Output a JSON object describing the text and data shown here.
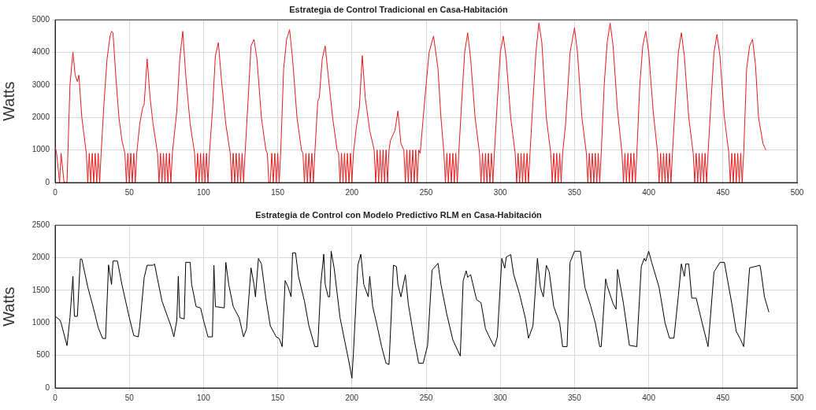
{
  "chart_data": [
    {
      "type": "line",
      "title": "Estrategia de Control Tradicional en Casa-Habitación",
      "ylabel": "Watts",
      "xlim": [
        0,
        500
      ],
      "xticks": [
        0,
        50,
        100,
        150,
        200,
        250,
        300,
        350,
        400,
        450,
        500
      ],
      "ylim": [
        0,
        5000
      ],
      "yticks": [
        0,
        1000,
        2000,
        3000,
        4000,
        5000
      ],
      "grid": true,
      "marker": "none",
      "line_style": "solid",
      "series": [
        {
          "color": "#e31a1c",
          "x": [
            0,
            1,
            3,
            4,
            6,
            8,
            10,
            12,
            13.5,
            15,
            16,
            18,
            21,
            22,
            23,
            24,
            25,
            26,
            27,
            28,
            29,
            30,
            31,
            33,
            35,
            37,
            38,
            39,
            41,
            43,
            45,
            47,
            48,
            49,
            50,
            51,
            52,
            53,
            54,
            55,
            57,
            59,
            60,
            62,
            64,
            66,
            69,
            70,
            71,
            72,
            73,
            74,
            75,
            76,
            77,
            78,
            79,
            82,
            84,
            86,
            88,
            91,
            94,
            95,
            96,
            97,
            98,
            99,
            100,
            101,
            102,
            103,
            104,
            106,
            108,
            110,
            112,
            115,
            118,
            119,
            120,
            121,
            122,
            123,
            124,
            125,
            126,
            127,
            128,
            130,
            132,
            134,
            136,
            139,
            142,
            143,
            144,
            145,
            146,
            147,
            148,
            149,
            150,
            151,
            152,
            154,
            156,
            158,
            160,
            163,
            166,
            167,
            168,
            169,
            170,
            171,
            172,
            173,
            174,
            175,
            177,
            178,
            180,
            182,
            184,
            187,
            190,
            191,
            192,
            193,
            194,
            195,
            196,
            197,
            198,
            199,
            200,
            201,
            203,
            205,
            207,
            209,
            212,
            215,
            216,
            217,
            218,
            219,
            220,
            221,
            222,
            223,
            224,
            225,
            226,
            229,
            231,
            233,
            235,
            236,
            237,
            238,
            239,
            240,
            241,
            242,
            243,
            244,
            245,
            246,
            249,
            252,
            255,
            258,
            260,
            262,
            263,
            264,
            265,
            266,
            267,
            268,
            269,
            270,
            271,
            272,
            274,
            276,
            278,
            280,
            283,
            286,
            287,
            288,
            289,
            290,
            291,
            292,
            293,
            294,
            295,
            296,
            298,
            300,
            302,
            304,
            307,
            310,
            311,
            312,
            313,
            314,
            315,
            316,
            317,
            318,
            319,
            320,
            322,
            324,
            326,
            328,
            331,
            334,
            335,
            336,
            337,
            338,
            339,
            340,
            341,
            342,
            344,
            347,
            350,
            352,
            355,
            358,
            359,
            360,
            361,
            362,
            363,
            364,
            365,
            366,
            367,
            368,
            370,
            372,
            374,
            376,
            379,
            382,
            383,
            384,
            385,
            386,
            387,
            388,
            389,
            390,
            391,
            392,
            394,
            396,
            398,
            400,
            403,
            406,
            407,
            408,
            409,
            410,
            411,
            412,
            413,
            414,
            415,
            416,
            418,
            420,
            422,
            424,
            427,
            430,
            431,
            432,
            433,
            434,
            435,
            436,
            437,
            438,
            439,
            440,
            442,
            444,
            446,
            448,
            451,
            454,
            455,
            456,
            457,
            458,
            459,
            460,
            461,
            462,
            463,
            464,
            466,
            468,
            470,
            472,
            474,
            477,
            479
          ],
          "values": [
            1100,
            900,
            0,
            900,
            0,
            0,
            3000,
            4000,
            3300,
            3100,
            3300,
            2000,
            900,
            0,
            900,
            0,
            900,
            0,
            900,
            0,
            900,
            0,
            900,
            2500,
            3800,
            4500,
            4650,
            4600,
            3200,
            2000,
            1300,
            900,
            0,
            900,
            0,
            900,
            0,
            900,
            0,
            900,
            1800,
            2300,
            2400,
            3800,
            2600,
            1800,
            900,
            0,
            900,
            0,
            900,
            0,
            900,
            0,
            900,
            0,
            900,
            2200,
            3800,
            4650,
            3300,
            1800,
            900,
            0,
            900,
            0,
            900,
            0,
            900,
            0,
            900,
            0,
            900,
            2200,
            3900,
            4300,
            3200,
            1800,
            900,
            0,
            900,
            0,
            900,
            0,
            900,
            0,
            900,
            0,
            900,
            2500,
            4200,
            4400,
            3800,
            2000,
            1000,
            900,
            0,
            0,
            900,
            0,
            900,
            0,
            900,
            0,
            900,
            3500,
            4400,
            4700,
            3800,
            2000,
            1000,
            900,
            0,
            900,
            0,
            900,
            0,
            900,
            0,
            900,
            2500,
            2600,
            3800,
            4200,
            3300,
            2000,
            1000,
            900,
            0,
            900,
            0,
            900,
            0,
            900,
            0,
            900,
            0,
            900,
            1700,
            2300,
            3900,
            2600,
            1600,
            1000,
            0,
            1000,
            0,
            1000,
            0,
            1000,
            0,
            1000,
            0,
            1000,
            1300,
            1600,
            2200,
            1200,
            1000,
            0,
            1000,
            0,
            1000,
            0,
            1000,
            0,
            1000,
            0,
            1000,
            900,
            2500,
            4000,
            4500,
            3500,
            2000,
            900,
            0,
            900,
            0,
            900,
            0,
            900,
            0,
            900,
            0,
            900,
            2500,
            4000,
            4600,
            3800,
            2000,
            900,
            0,
            900,
            0,
            900,
            0,
            900,
            0,
            900,
            0,
            900,
            2500,
            4000,
            4500,
            3800,
            2000,
            900,
            0,
            900,
            0,
            900,
            0,
            900,
            0,
            900,
            0,
            900,
            2500,
            4000,
            4900,
            4300,
            2000,
            900,
            0,
            900,
            0,
            900,
            0,
            900,
            0,
            900,
            1800,
            4000,
            4750,
            4000,
            2000,
            900,
            0,
            900,
            0,
            900,
            0,
            900,
            0,
            900,
            0,
            900,
            3000,
            4300,
            4900,
            4200,
            2200,
            900,
            0,
            900,
            0,
            900,
            0,
            900,
            0,
            900,
            0,
            900,
            3000,
            4200,
            4650,
            4000,
            2200,
            900,
            0,
            900,
            0,
            900,
            0,
            900,
            0,
            900,
            0,
            900,
            2500,
            4000,
            4600,
            3900,
            2000,
            900,
            0,
            900,
            0,
            900,
            0,
            900,
            0,
            900,
            0,
            900,
            2500,
            4000,
            4550,
            3900,
            2000,
            900,
            0,
            900,
            0,
            900,
            0,
            900,
            0,
            900,
            0,
            900,
            3500,
            4200,
            4400,
            3600,
            2000,
            1200,
            1000
          ]
        }
      ]
    },
    {
      "type": "line",
      "title": "Estrategia de Control con Modelo Predictivo RLM en Casa-Habitación",
      "ylabel": "Watts",
      "xlim": [
        0,
        500
      ],
      "xticks": [
        0,
        50,
        100,
        150,
        200,
        250,
        300,
        350,
        400,
        450,
        500
      ],
      "ylim": [
        0,
        2500
      ],
      "yticks": [
        0,
        500,
        1000,
        1500,
        2000,
        2500
      ],
      "grid": true,
      "marker": "none",
      "line_style": "solid",
      "series": [
        {
          "color": "#000000",
          "x": [
            0,
            3,
            4,
            8,
            10,
            12,
            13,
            15,
            17,
            18,
            22,
            26,
            29,
            32,
            34,
            36,
            38,
            39,
            42,
            45,
            50,
            53,
            56,
            57,
            60,
            62,
            66,
            67,
            69,
            72,
            76,
            78,
            80,
            82,
            83,
            84,
            87,
            88,
            91,
            92,
            95,
            98,
            100,
            103,
            106,
            107,
            108,
            114,
            115,
            117,
            120,
            124,
            127,
            129,
            132,
            134,
            135,
            137,
            139,
            142,
            145,
            149,
            151,
            153,
            155,
            157,
            159,
            160,
            162,
            164,
            168,
            171,
            175,
            177,
            179,
            181,
            182,
            184,
            185,
            186,
            188,
            192,
            198,
            200,
            201,
            204,
            206,
            208,
            211,
            212,
            214,
            217,
            220,
            223,
            225,
            228,
            230,
            231,
            233,
            236,
            238,
            242,
            245,
            248,
            251,
            254,
            258,
            260,
            264,
            268,
            273,
            275,
            277,
            278,
            280,
            284,
            287,
            290,
            293,
            296,
            298,
            301,
            303,
            304,
            307,
            309,
            313,
            317,
            319,
            322,
            325,
            327,
            329,
            331,
            333,
            336,
            340,
            342,
            345,
            347,
            350,
            354,
            357,
            361,
            364,
            367,
            368,
            371,
            372,
            376,
            378,
            379,
            383,
            387,
            392,
            395,
            397,
            398,
            400,
            402,
            407,
            411,
            414,
            417,
            420,
            422,
            424,
            425,
            427,
            429,
            432,
            436,
            440,
            444,
            448,
            451,
            456,
            459,
            462,
            464,
            468,
            475,
            476,
            478,
            481
          ],
          "values": [
            1100,
            1050,
            1000,
            650,
            1080,
            1715,
            1100,
            1100,
            1980,
            1980,
            1550,
            1210,
            930,
            760,
            760,
            1890,
            1590,
            1950,
            1950,
            1590,
            1080,
            805,
            785,
            950,
            1695,
            1885,
            1885,
            1905,
            1675,
            1335,
            1080,
            955,
            785,
            1040,
            1715,
            1080,
            1060,
            1930,
            1930,
            1590,
            1250,
            1230,
            1040,
            785,
            785,
            1885,
            1250,
            1230,
            1930,
            1590,
            1250,
            1080,
            785,
            910,
            1845,
            1590,
            1400,
            1990,
            1905,
            1380,
            955,
            785,
            760,
            635,
            1650,
            1550,
            1400,
            2075,
            2075,
            1715,
            1335,
            955,
            635,
            635,
            1590,
            2055,
            1590,
            1400,
            1400,
            2100,
            1845,
            1080,
            400,
            150,
            530,
            1885,
            2055,
            1590,
            1400,
            1715,
            1250,
            955,
            635,
            380,
            360,
            1885,
            1865,
            1590,
            1400,
            1740,
            1290,
            740,
            380,
            380,
            655,
            1810,
            1915,
            1590,
            1125,
            740,
            490,
            1650,
            1800,
            1700,
            1740,
            1355,
            1310,
            910,
            765,
            635,
            785,
            1990,
            1840,
            2010,
            2050,
            1745,
            1440,
            1060,
            765,
            955,
            1990,
            1545,
            1400,
            1885,
            1780,
            1250,
            1000,
            635,
            635,
            1930,
            2100,
            2100,
            1545,
            1250,
            1000,
            635,
            635,
            1675,
            1570,
            1295,
            1210,
            1820,
            1295,
            655,
            635,
            1865,
            1990,
            1950,
            2100,
            1930,
            1545,
            1000,
            765,
            765,
            1420,
            1905,
            1715,
            1905,
            1905,
            1380,
            1380,
            1000,
            635,
            1780,
            1930,
            1930,
            1295,
            870,
            740,
            635,
            1845,
            1885,
            1740,
            1400,
            1165
          ]
        }
      ]
    }
  ]
}
